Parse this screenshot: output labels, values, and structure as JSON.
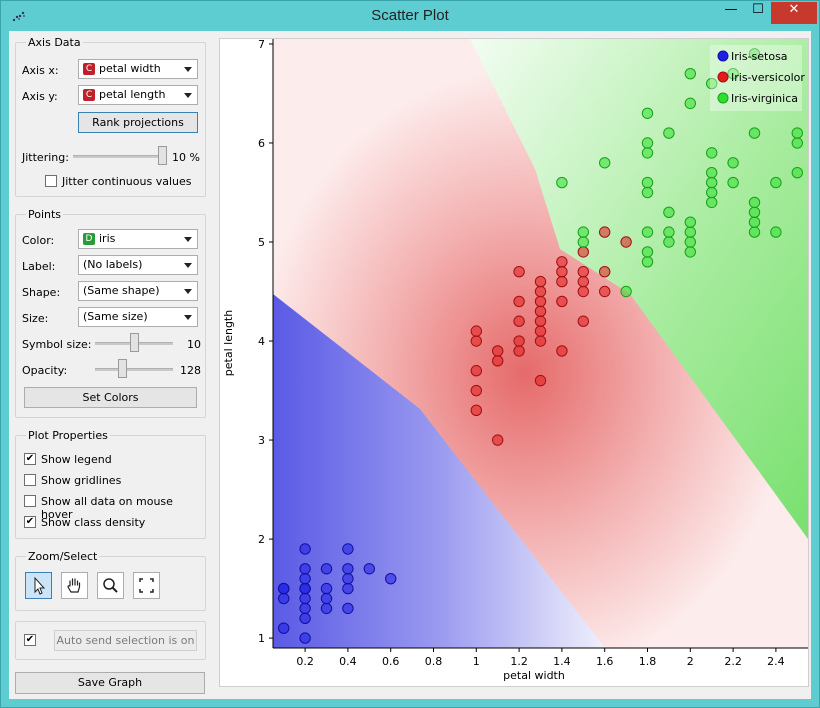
{
  "window": {
    "title": "Scatter Plot",
    "minimize": "—",
    "maximize": "☐",
    "close": "✕"
  },
  "axis_data": {
    "title": "Axis Data",
    "axis_x_label": "Axis x:",
    "axis_x_value": "petal width",
    "axis_x_badge": "C",
    "axis_y_label": "Axis y:",
    "axis_y_value": "petal length",
    "axis_y_badge": "C",
    "rank_button": "Rank projections",
    "jittering_label": "Jittering:",
    "jittering_value": "10 %",
    "jittering_fraction": 0.97,
    "jitter_continuous": "Jitter continuous values",
    "jitter_continuous_checked": false
  },
  "points": {
    "title": "Points",
    "color_label": "Color:",
    "color_value": "iris",
    "color_badge": "D",
    "label_label": "Label:",
    "label_value": "(No labels)",
    "shape_label": "Shape:",
    "shape_value": "(Same shape)",
    "size_label": "Size:",
    "size_value": "(Same size)",
    "symbol_size_label": "Symbol size:",
    "symbol_size_value": "10",
    "symbol_size_fraction": 0.5,
    "opacity_label": "Opacity:",
    "opacity_value": "128",
    "opacity_fraction": 0.35,
    "set_colors": "Set Colors"
  },
  "plot_properties": {
    "title": "Plot Properties",
    "options": [
      {
        "label": "Show legend",
        "checked": true
      },
      {
        "label": "Show gridlines",
        "checked": false
      },
      {
        "label": "Show all data on mouse hover",
        "checked": false
      },
      {
        "label": "Show class density",
        "checked": true
      }
    ]
  },
  "zoom_select": {
    "title": "Zoom/Select",
    "tools": [
      "pointer-icon",
      "hand-pan-icon",
      "magnifier-icon",
      "fit-view-icon"
    ]
  },
  "auto_send": {
    "checked": true,
    "label": "Auto send selection is on"
  },
  "save_graph": "Save Graph",
  "colors": {
    "setosa": "#1f1fe6",
    "versicolor": "#e41a1c",
    "virginica": "#2ee02e",
    "badge_c": "#c0202a",
    "badge_d": "#2a9a3a"
  },
  "chart_data": {
    "type": "scatter",
    "xlabel": "petal width",
    "ylabel": "petal length",
    "xlim": [
      0.05,
      2.55
    ],
    "ylim": [
      0.9,
      7.05
    ],
    "xticks": [
      "0.2",
      "0.4",
      "0.6",
      "0.8",
      "1",
      "1.2",
      "1.4",
      "1.6",
      "1.8",
      "2",
      "2.2",
      "2.4"
    ],
    "yticks": [
      "1",
      "2",
      "3",
      "4",
      "5",
      "6",
      "7"
    ],
    "legend_position": "top-right",
    "series": [
      {
        "name": "Iris-setosa",
        "color": "#1f1fe6",
        "points": [
          [
            0.1,
            1.1
          ],
          [
            0.1,
            1.4
          ],
          [
            0.1,
            1.5
          ],
          [
            0.1,
            1.5
          ],
          [
            0.2,
            1.0
          ],
          [
            0.2,
            1.2
          ],
          [
            0.2,
            1.3
          ],
          [
            0.2,
            1.4
          ],
          [
            0.2,
            1.5
          ],
          [
            0.2,
            1.5
          ],
          [
            0.2,
            1.6
          ],
          [
            0.2,
            1.7
          ],
          [
            0.2,
            1.9
          ],
          [
            0.3,
            1.3
          ],
          [
            0.3,
            1.4
          ],
          [
            0.3,
            1.5
          ],
          [
            0.3,
            1.7
          ],
          [
            0.4,
            1.3
          ],
          [
            0.4,
            1.5
          ],
          [
            0.4,
            1.6
          ],
          [
            0.4,
            1.7
          ],
          [
            0.4,
            1.9
          ],
          [
            0.5,
            1.7
          ],
          [
            0.6,
            1.6
          ]
        ]
      },
      {
        "name": "Iris-versicolor",
        "color": "#e41a1c",
        "points": [
          [
            1.0,
            3.3
          ],
          [
            1.0,
            3.5
          ],
          [
            1.0,
            3.7
          ],
          [
            1.0,
            4.0
          ],
          [
            1.0,
            4.1
          ],
          [
            1.1,
            3.0
          ],
          [
            1.1,
            3.8
          ],
          [
            1.1,
            3.9
          ],
          [
            1.2,
            3.9
          ],
          [
            1.2,
            4.0
          ],
          [
            1.2,
            4.2
          ],
          [
            1.2,
            4.4
          ],
          [
            1.2,
            4.7
          ],
          [
            1.3,
            3.6
          ],
          [
            1.3,
            4.0
          ],
          [
            1.3,
            4.1
          ],
          [
            1.3,
            4.2
          ],
          [
            1.3,
            4.3
          ],
          [
            1.3,
            4.4
          ],
          [
            1.3,
            4.5
          ],
          [
            1.3,
            4.6
          ],
          [
            1.4,
            3.9
          ],
          [
            1.4,
            4.4
          ],
          [
            1.4,
            4.6
          ],
          [
            1.4,
            4.7
          ],
          [
            1.4,
            4.8
          ],
          [
            1.5,
            4.2
          ],
          [
            1.5,
            4.5
          ],
          [
            1.5,
            4.6
          ],
          [
            1.5,
            4.7
          ],
          [
            1.5,
            4.9
          ],
          [
            1.6,
            4.5
          ],
          [
            1.6,
            4.7
          ],
          [
            1.6,
            5.1
          ],
          [
            1.7,
            5.0
          ]
        ]
      },
      {
        "name": "Iris-virginica",
        "color": "#2ee02e",
        "points": [
          [
            1.4,
            5.6
          ],
          [
            1.5,
            5.0
          ],
          [
            1.5,
            5.1
          ],
          [
            1.6,
            5.8
          ],
          [
            1.7,
            4.5
          ],
          [
            1.8,
            4.8
          ],
          [
            1.8,
            4.9
          ],
          [
            1.8,
            5.1
          ],
          [
            1.8,
            5.5
          ],
          [
            1.8,
            5.6
          ],
          [
            1.8,
            5.9
          ],
          [
            1.8,
            6.0
          ],
          [
            1.8,
            6.3
          ],
          [
            1.9,
            5.0
          ],
          [
            1.9,
            5.1
          ],
          [
            1.9,
            5.3
          ],
          [
            1.9,
            6.1
          ],
          [
            2.0,
            4.9
          ],
          [
            2.0,
            5.0
          ],
          [
            2.0,
            5.1
          ],
          [
            2.0,
            5.2
          ],
          [
            2.0,
            6.4
          ],
          [
            2.0,
            6.7
          ],
          [
            2.1,
            5.4
          ],
          [
            2.1,
            5.5
          ],
          [
            2.1,
            5.6
          ],
          [
            2.1,
            5.7
          ],
          [
            2.1,
            5.9
          ],
          [
            2.1,
            6.6
          ],
          [
            2.2,
            5.6
          ],
          [
            2.2,
            5.8
          ],
          [
            2.2,
            6.7
          ],
          [
            2.3,
            5.1
          ],
          [
            2.3,
            5.2
          ],
          [
            2.3,
            5.3
          ],
          [
            2.3,
            5.4
          ],
          [
            2.3,
            6.1
          ],
          [
            2.3,
            6.9
          ],
          [
            2.4,
            5.1
          ],
          [
            2.4,
            5.6
          ],
          [
            2.5,
            5.7
          ],
          [
            2.5,
            6.0
          ],
          [
            2.5,
            6.1
          ]
        ]
      }
    ]
  }
}
